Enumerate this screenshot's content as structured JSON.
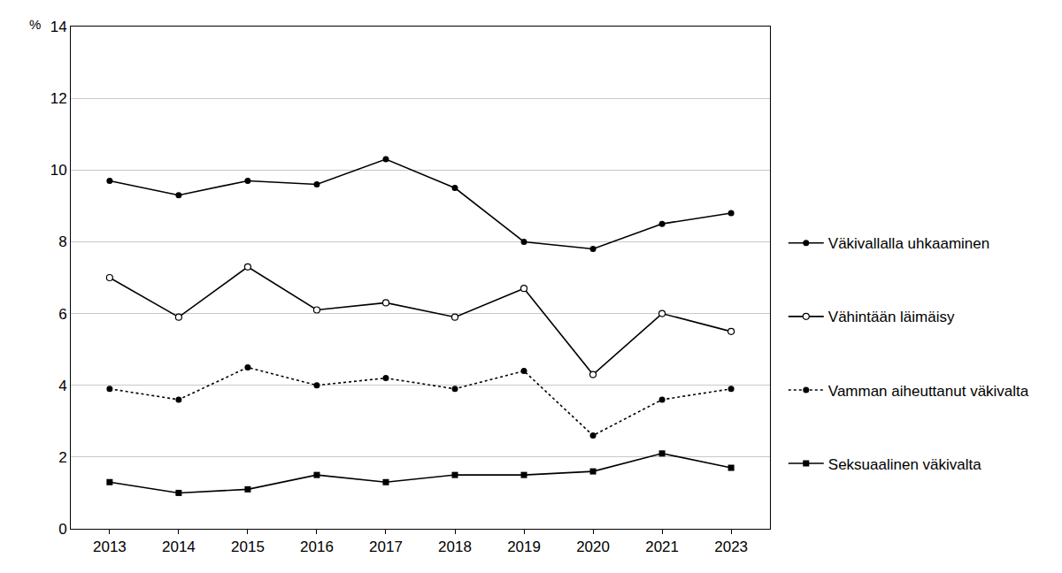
{
  "chart_data": {
    "type": "line",
    "y_label": "%",
    "categories": [
      "2013",
      "2014",
      "2015",
      "2016",
      "2017",
      "2018",
      "2019",
      "2020",
      "2021",
      "2023"
    ],
    "series": [
      {
        "name": "Väkivallalla uhkaaminen",
        "color": "#000000",
        "marker": "circle",
        "line_style": "solid",
        "values": [
          9.7,
          9.3,
          9.7,
          9.6,
          10.3,
          9.5,
          8.0,
          7.8,
          8.5,
          8.8
        ]
      },
      {
        "name": "Vähintään läimäisy",
        "color": "#000000",
        "marker": "circle-open",
        "line_style": "solid",
        "values": [
          7.0,
          5.9,
          7.3,
          6.1,
          6.3,
          5.9,
          6.7,
          4.3,
          6.0,
          5.5
        ]
      },
      {
        "name": "Vamman aiheuttanut väkivalta",
        "color": "#000000",
        "marker": "circle",
        "line_style": "dot",
        "values": [
          3.9,
          3.6,
          4.5,
          4.0,
          4.2,
          3.9,
          4.4,
          2.6,
          3.6,
          3.9
        ]
      },
      {
        "name": "Seksuaalinen väkivalta",
        "color": "#000000",
        "marker": "square",
        "line_style": "solid",
        "values": [
          1.3,
          1.0,
          1.1,
          1.5,
          1.3,
          1.5,
          1.5,
          1.6,
          2.1,
          1.7
        ]
      }
    ],
    "ylim": [
      0,
      14
    ],
    "yticks": [
      0,
      2,
      4,
      6,
      8,
      10,
      12,
      14
    ],
    "grid": true,
    "legend": "right"
  }
}
